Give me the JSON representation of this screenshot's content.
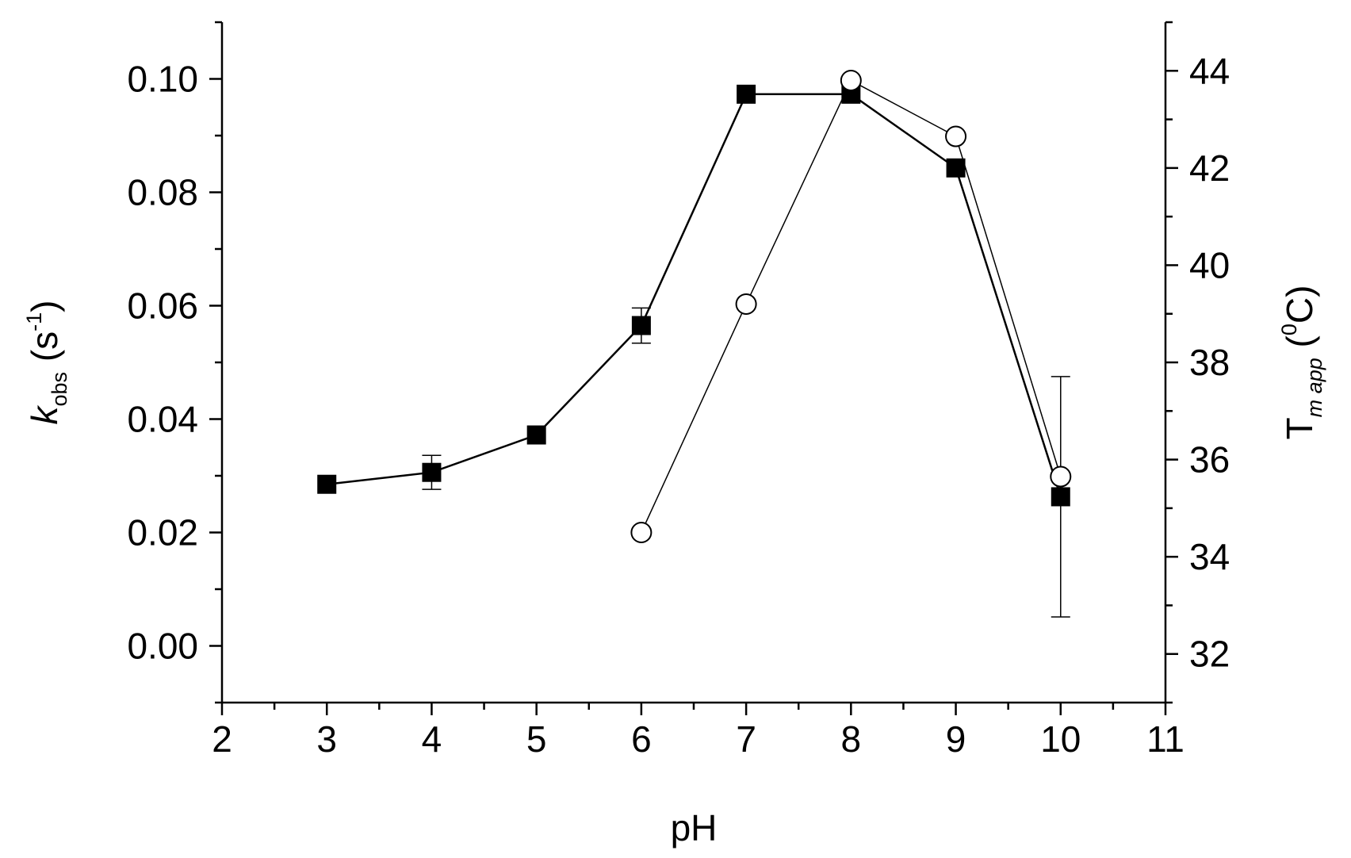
{
  "chart_data": {
    "type": "line",
    "xlabel": "pH",
    "x_ticks": [
      "2",
      "3",
      "4",
      "5",
      "6",
      "7",
      "8",
      "9",
      "10",
      "11"
    ],
    "xlim": [
      2,
      11
    ],
    "y_left": {
      "label_main": "k",
      "label_sub": "obs",
      "label_unit_open": " (s",
      "label_sup": "-1",
      "label_unit_close": ")",
      "ylim": [
        -0.01,
        0.11
      ],
      "ticks": [
        "0.00",
        "0.02",
        "0.04",
        "0.06",
        "0.08",
        "0.10"
      ]
    },
    "y_right": {
      "label_main": "T",
      "label_sub": "m app",
      "label_unit_open": " (",
      "label_sup": "0",
      "label_unit_close": "C)",
      "ylim": [
        31,
        45
      ],
      "ticks": [
        "32",
        "34",
        "36",
        "38",
        "40",
        "42",
        "44"
      ]
    },
    "series": [
      {
        "axis": "left",
        "marker": "filled-square",
        "x": [
          3,
          4,
          5,
          6,
          7,
          8,
          9,
          10
        ],
        "y": [
          0.0285,
          0.0306,
          0.0372,
          0.0565,
          0.0973,
          0.0973,
          0.0843,
          0.0263
        ],
        "err": [
          null,
          0.003,
          null,
          0.0031,
          null,
          null,
          null,
          0.0212
        ]
      },
      {
        "axis": "right",
        "marker": "open-circle",
        "x": [
          6,
          7,
          8,
          9,
          10
        ],
        "y": [
          34.5,
          39.2,
          43.8,
          42.65,
          35.65
        ]
      }
    ]
  }
}
